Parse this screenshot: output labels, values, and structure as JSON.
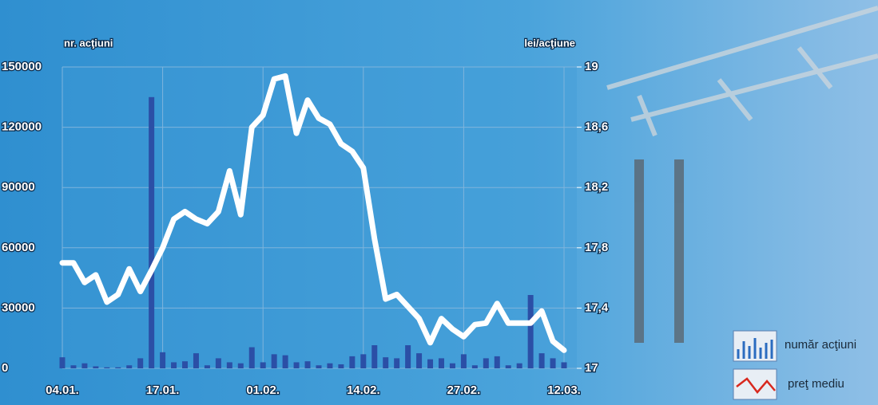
{
  "chart_data": {
    "type": "bar",
    "y_label": "nr. acţiuni",
    "y2_label": "lei/acţiune",
    "categories": [
      "04.01.",
      null,
      null,
      null,
      null,
      null,
      null,
      null,
      null,
      "17.01.",
      null,
      null,
      null,
      null,
      null,
      null,
      null,
      null,
      "01.02.",
      null,
      null,
      null,
      null,
      null,
      null,
      null,
      null,
      "14.02.",
      null,
      null,
      null,
      null,
      null,
      null,
      null,
      null,
      "27.02.",
      null,
      null,
      null,
      null,
      null,
      null,
      null,
      null,
      "12.03."
    ],
    "series": [
      {
        "name": "număr acţiuni",
        "type": "bar",
        "color": "#2b4fa6",
        "values": [
          5500,
          1500,
          2500,
          1000,
          500,
          500,
          1500,
          5000,
          135000,
          8000,
          3000,
          3500,
          7500,
          1500,
          5000,
          3000,
          2500,
          10500,
          3000,
          7000,
          6500,
          3000,
          3500,
          1500,
          2500,
          2000,
          6000,
          7000,
          11500,
          5500,
          5000,
          11500,
          7500,
          4500,
          5000,
          2500,
          7000,
          1500,
          5000,
          6000,
          1500,
          2500,
          36500,
          7500,
          5000,
          3000
        ]
      },
      {
        "name": "preţ mediu",
        "type": "line",
        "axis": "y2",
        "color": "#ffffff",
        "values": [
          17.7,
          17.7,
          17.57,
          17.62,
          17.44,
          17.49,
          17.66,
          17.51,
          17.65,
          17.8,
          17.99,
          18.04,
          17.99,
          17.96,
          18.04,
          18.31,
          18.02,
          18.6,
          18.68,
          18.92,
          18.94,
          18.56,
          18.78,
          18.66,
          18.62,
          18.49,
          18.44,
          18.33,
          17.86,
          17.46,
          17.49,
          17.41,
          17.33,
          17.17,
          17.33,
          17.26,
          17.21,
          17.29,
          17.3,
          17.43,
          17.3,
          17.3,
          17.3,
          17.38,
          17.18,
          17.12
        ]
      }
    ],
    "ylim": [
      0,
      150000
    ],
    "yticks": [
      0,
      30000,
      60000,
      90000,
      120000,
      150000
    ],
    "y2lim": [
      17,
      19
    ],
    "y2ticks": [
      17,
      {
        "value": 17.4,
        "label": "17,4"
      },
      {
        "value": 17.8,
        "label": "17,8"
      },
      {
        "value": 18.2,
        "label": "18,2"
      },
      {
        "value": 18.6,
        "label": "18,6"
      },
      19
    ],
    "grid": true
  }
}
